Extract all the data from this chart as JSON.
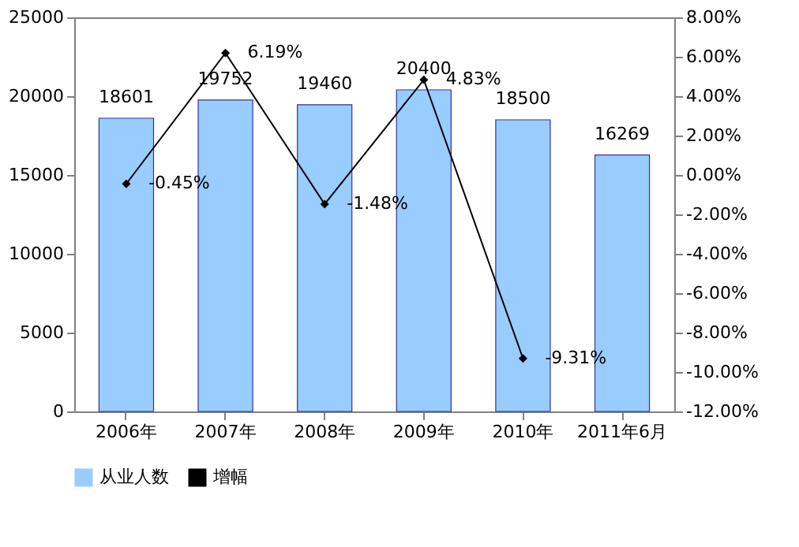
{
  "chart_data": {
    "type": "bar",
    "categories": [
      "2006年",
      "2007年",
      "2008年",
      "2009年",
      "2010年",
      "2011年6月"
    ],
    "series": [
      {
        "name": "从业人数",
        "color": "#99ccff",
        "values": [
          18601,
          19752,
          19460,
          20400,
          18500,
          16269
        ],
        "value_labels": [
          "18601",
          "19752",
          "19460",
          "20400",
          "18500",
          "16269"
        ]
      },
      {
        "name": "增幅",
        "type": "line",
        "axis": "y2",
        "color": "#000000",
        "values": [
          -0.45,
          6.19,
          -1.48,
          4.83,
          -9.31,
          null
        ],
        "value_labels": [
          "-0.45%",
          "6.19%",
          "-1.48%",
          "4.83%",
          "-9.31%",
          null
        ]
      }
    ],
    "ylim": [
      0,
      25000
    ],
    "yticks": [
      0,
      5000,
      10000,
      15000,
      20000,
      25000
    ],
    "y2lim": [
      -12,
      8
    ],
    "y2ticks": [
      {
        "value": 8,
        "label": "8.00%"
      },
      {
        "value": 6,
        "label": "6.00%"
      },
      {
        "value": 4,
        "label": "4.00%"
      },
      {
        "value": 2,
        "label": "2.00%"
      },
      {
        "value": 0,
        "label": "0.00%"
      },
      {
        "value": -2,
        "label": "-2.00%"
      },
      {
        "value": -4,
        "label": "-4.00%"
      },
      {
        "value": -6,
        "label": "-6.00%"
      },
      {
        "value": -8,
        "label": "-8.00%"
      },
      {
        "value": -10,
        "label": "-10.00%"
      },
      {
        "value": -12,
        "label": "-12.00%"
      }
    ],
    "legend": "bottom",
    "grid": false,
    "marker": "diamond",
    "line_style": "solid"
  }
}
